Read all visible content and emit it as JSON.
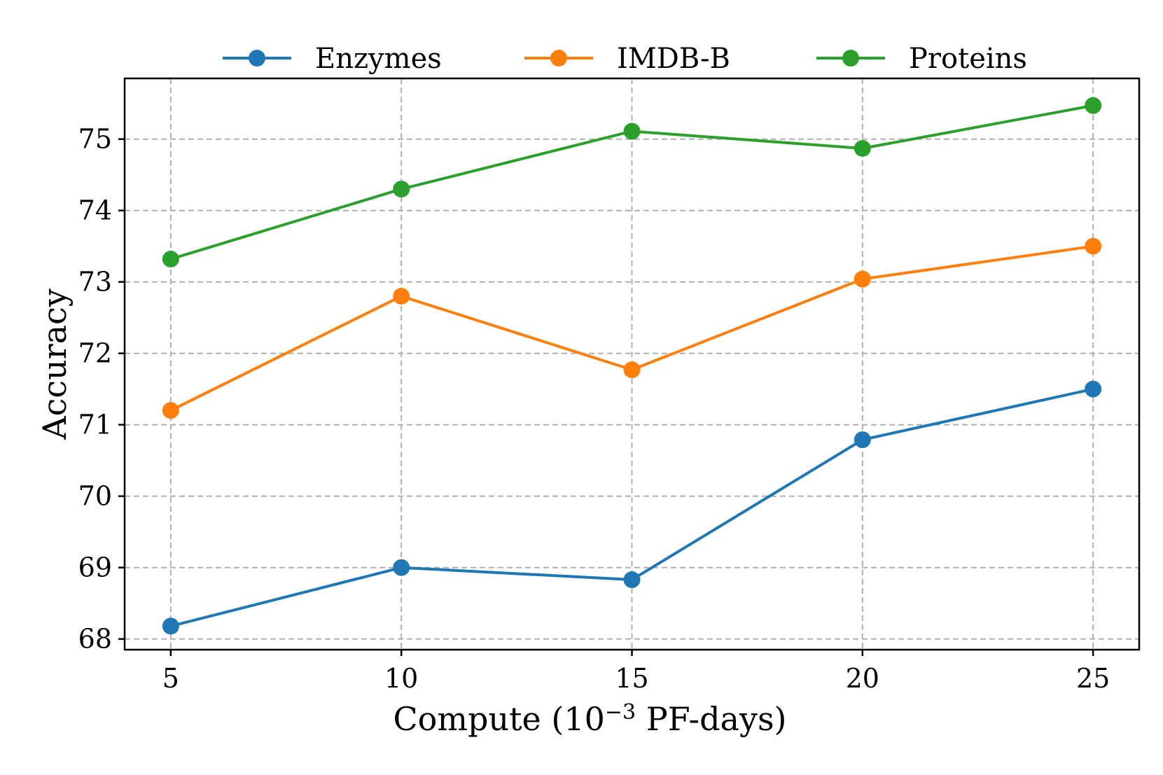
{
  "chart_data": {
    "type": "line",
    "xlabel": {
      "base": "Compute (10",
      "sup": "−3",
      "rest": " PF-days)"
    },
    "ylabel": "Accuracy",
    "x": [
      5,
      10,
      15,
      20,
      25
    ],
    "xticks": [
      "5",
      "10",
      "15",
      "20",
      "25"
    ],
    "yticks": [
      "68",
      "69",
      "70",
      "71",
      "72",
      "73",
      "74",
      "75"
    ],
    "xlim": [
      4,
      26
    ],
    "ylim": [
      67.85,
      75.85
    ],
    "grid": true,
    "legend_position": "top",
    "series": [
      {
        "name": "Enzymes",
        "color": "#1f77b4",
        "values": [
          68.18,
          69.0,
          68.83,
          70.79,
          71.5
        ]
      },
      {
        "name": "IMDB-B",
        "color": "#ff7f0e",
        "values": [
          71.2,
          72.8,
          71.77,
          73.04,
          73.5
        ]
      },
      {
        "name": "Proteins",
        "color": "#2ca02c",
        "values": [
          73.32,
          74.3,
          75.11,
          74.87,
          75.47
        ]
      }
    ]
  }
}
